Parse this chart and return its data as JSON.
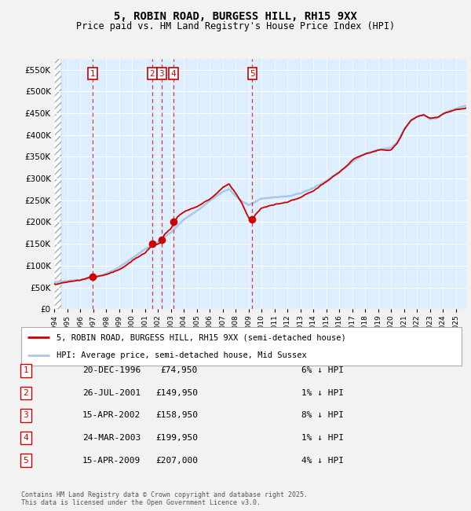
{
  "title": "5, ROBIN ROAD, BURGESS HILL, RH15 9XX",
  "subtitle": "Price paid vs. HM Land Registry's House Price Index (HPI)",
  "transactions": [
    {
      "num": 1,
      "date": "20-DEC-1996",
      "price": 74950,
      "year": 1996.96,
      "pct": "6% ↓ HPI"
    },
    {
      "num": 2,
      "date": "26-JUL-2001",
      "price": 149950,
      "year": 2001.56,
      "pct": "1% ↓ HPI"
    },
    {
      "num": 3,
      "date": "15-APR-2002",
      "price": 158950,
      "year": 2002.29,
      "pct": "8% ↓ HPI"
    },
    {
      "num": 4,
      "date": "24-MAR-2003",
      "price": 199950,
      "year": 2003.22,
      "pct": "1% ↓ HPI"
    },
    {
      "num": 5,
      "date": "15-APR-2009",
      "price": 207000,
      "year": 2009.29,
      "pct": "4% ↓ HPI"
    }
  ],
  "hpi_color": "#a8c8e8",
  "price_color": "#cc0000",
  "fig_bg_color": "#f2f2f2",
  "plot_bg_color": "#ddeeff",
  "grid_color": "#ffffff",
  "ylim": [
    0,
    575000
  ],
  "yticks": [
    0,
    50000,
    100000,
    150000,
    200000,
    250000,
    300000,
    350000,
    400000,
    450000,
    500000,
    550000
  ],
  "xmin": 1994.0,
  "xmax": 2025.8,
  "legend_line1": "5, ROBIN ROAD, BURGESS HILL, RH15 9XX (semi-detached house)",
  "legend_line2": "HPI: Average price, semi-detached house, Mid Sussex",
  "footer1": "Contains HM Land Registry data © Crown copyright and database right 2025.",
  "footer2": "This data is licensed under the Open Government Licence v3.0.",
  "hpi_knots": [
    1994,
    1995,
    1996,
    1997,
    1998,
    1999,
    2000,
    2001,
    2002,
    2003,
    2004,
    2005,
    2006,
    2007,
    2007.5,
    2008,
    2008.5,
    2009,
    2009.5,
    2010,
    2011,
    2012,
    2013,
    2014,
    2015,
    2016,
    2017,
    2018,
    2019,
    2020,
    2020.5,
    2021,
    2021.5,
    2022,
    2022.5,
    2023,
    2023.5,
    2024,
    2024.5,
    2025,
    2025.8
  ],
  "hpi_vals": [
    62000,
    65000,
    68000,
    72000,
    82000,
    95000,
    115000,
    135000,
    155000,
    175000,
    205000,
    225000,
    248000,
    268000,
    275000,
    258000,
    245000,
    238000,
    245000,
    252000,
    255000,
    258000,
    265000,
    278000,
    295000,
    315000,
    340000,
    358000,
    368000,
    372000,
    385000,
    415000,
    435000,
    445000,
    450000,
    440000,
    442000,
    452000,
    458000,
    462000,
    468000
  ],
  "price_knots": [
    1994,
    1995,
    1996,
    1996.96,
    1997,
    1998,
    1999,
    2000,
    2001,
    2001.56,
    2002,
    2002.29,
    2002.5,
    2003,
    2003.22,
    2003.5,
    2004,
    2005,
    2006,
    2007,
    2007.5,
    2008,
    2008.5,
    2009,
    2009.29,
    2009.5,
    2010,
    2011,
    2012,
    2013,
    2014,
    2015,
    2016,
    2017,
    2018,
    2019,
    2020,
    2020.5,
    2021,
    2021.5,
    2022,
    2022.5,
    2023,
    2023.5,
    2024,
    2024.5,
    2025,
    2025.8
  ],
  "price_vals": [
    58000,
    62000,
    66000,
    74950,
    71000,
    80000,
    93000,
    112000,
    132000,
    149950,
    153000,
    158950,
    175000,
    188000,
    199950,
    215000,
    228000,
    240000,
    258000,
    285000,
    292000,
    270000,
    248000,
    215000,
    207000,
    222000,
    238000,
    245000,
    250000,
    258000,
    272000,
    290000,
    312000,
    338000,
    355000,
    364000,
    368000,
    382000,
    412000,
    432000,
    442000,
    445000,
    436000,
    438000,
    448000,
    455000,
    458000,
    462000
  ]
}
